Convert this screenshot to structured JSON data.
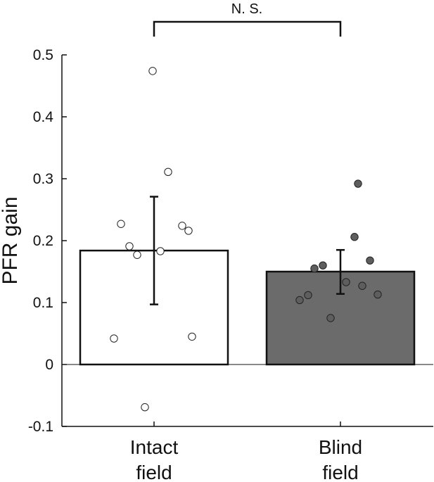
{
  "chart_data": {
    "type": "bar",
    "ylabel": "PFR gain",
    "ylim": [
      -0.1,
      0.5
    ],
    "yticks": [
      -0.1,
      0,
      0.1,
      0.2,
      0.3,
      0.4,
      0.5
    ],
    "ytick_labels": [
      "-0.1",
      "0",
      "0.1",
      "0.2",
      "0.3",
      "0.4",
      "0.5"
    ],
    "grid": false,
    "zero_line": true,
    "categories": [
      {
        "label_lines": [
          "Intact",
          "field"
        ],
        "value": 0.184,
        "error_low": 0.097,
        "error_high": 0.271,
        "bar_color": "#ffffff",
        "point_color": "#ffffff",
        "points": [
          0.474,
          0.311,
          0.227,
          0.224,
          0.216,
          0.191,
          0.183,
          0.177,
          0.045,
          0.042,
          -0.069
        ]
      },
      {
        "label_lines": [
          "Blind",
          "field"
        ],
        "value": 0.15,
        "error_low": 0.114,
        "error_high": 0.185,
        "bar_color": "#6b6b6b",
        "point_color": "#5e5e5e",
        "points": [
          0.292,
          0.206,
          0.168,
          0.16,
          0.155,
          0.133,
          0.127,
          0.113,
          0.112,
          0.104,
          0.075
        ]
      }
    ],
    "significance": {
      "label": "N. S.",
      "between": [
        0,
        1
      ]
    }
  }
}
